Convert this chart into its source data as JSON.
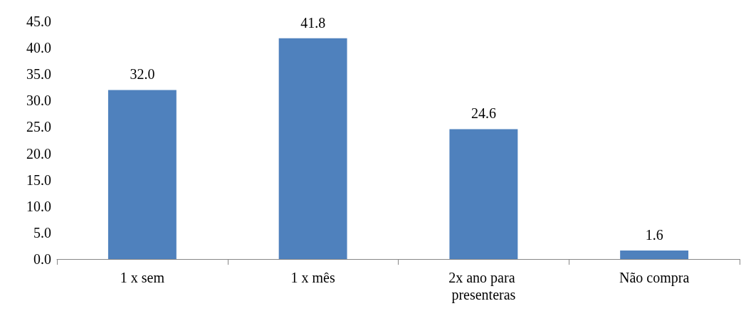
{
  "chart_data": {
    "type": "bar",
    "categories": [
      "1 x sem",
      "1 x mês",
      "2x ano para presenteras",
      "Não compra"
    ],
    "values": [
      32.0,
      41.8,
      24.6,
      1.6
    ],
    "value_labels": [
      "32.0",
      "41.8",
      "24.6",
      "1.6"
    ],
    "color": "#4f81bd",
    "ylim": [
      0,
      45
    ],
    "yticks": [
      {
        "value": 0,
        "label": "0.0"
      },
      {
        "value": 5,
        "label": "5.0"
      },
      {
        "value": 10,
        "label": "10.0"
      },
      {
        "value": 15,
        "label": "15.0"
      },
      {
        "value": 20,
        "label": "20.0"
      },
      {
        "value": 25,
        "label": "25.0"
      },
      {
        "value": 30,
        "label": "30.0"
      },
      {
        "value": 35,
        "label": "35.0"
      },
      {
        "value": 40,
        "label": "40.0"
      },
      {
        "value": 45,
        "label": "45.0"
      }
    ],
    "grid": false
  }
}
